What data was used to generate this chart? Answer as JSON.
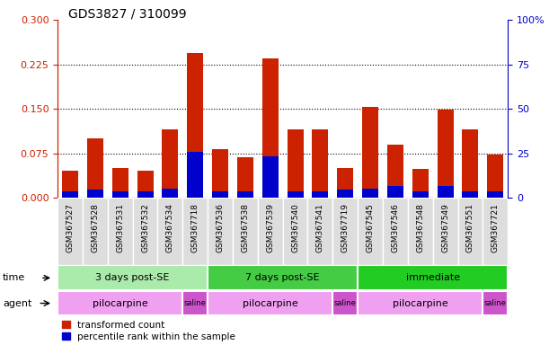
{
  "title": "GDS3827 / 310099",
  "samples": [
    "GSM367527",
    "GSM367528",
    "GSM367531",
    "GSM367532",
    "GSM367534",
    "GSM367718",
    "GSM367536",
    "GSM367538",
    "GSM367539",
    "GSM367540",
    "GSM367541",
    "GSM367719",
    "GSM367545",
    "GSM367546",
    "GSM367548",
    "GSM367549",
    "GSM367551",
    "GSM367721"
  ],
  "transformed_count": [
    0.045,
    0.1,
    0.05,
    0.045,
    0.115,
    0.245,
    0.082,
    0.068,
    0.235,
    0.115,
    0.115,
    0.05,
    0.153,
    0.09,
    0.048,
    0.148,
    0.115,
    0.073
  ],
  "percentile_rank_scaled": [
    0.01,
    0.013,
    0.01,
    0.01,
    0.015,
    0.078,
    0.01,
    0.01,
    0.07,
    0.01,
    0.01,
    0.013,
    0.015,
    0.02,
    0.01,
    0.02,
    0.01,
    0.01
  ],
  "ylim_left": [
    0,
    0.3
  ],
  "ylim_right": [
    0,
    100
  ],
  "yticks_left": [
    0,
    0.075,
    0.15,
    0.225,
    0.3
  ],
  "yticks_right": [
    0,
    25,
    50,
    75,
    100
  ],
  "bar_color_red": "#cc2200",
  "bar_color_blue": "#0000cc",
  "time_groups": [
    {
      "label": "3 days post-SE",
      "start": 0,
      "end": 5,
      "color": "#aaeaaa"
    },
    {
      "label": "7 days post-SE",
      "start": 6,
      "end": 11,
      "color": "#44cc44"
    },
    {
      "label": "immediate",
      "start": 12,
      "end": 17,
      "color": "#22cc22"
    }
  ],
  "agent_groups": [
    {
      "label": "pilocarpine",
      "start": 0,
      "end": 4,
      "color": "#f0a0f0"
    },
    {
      "label": "saline",
      "start": 5,
      "end": 5,
      "color": "#cc55cc"
    },
    {
      "label": "pilocarpine",
      "start": 6,
      "end": 10,
      "color": "#f0a0f0"
    },
    {
      "label": "saline",
      "start": 11,
      "end": 11,
      "color": "#cc55cc"
    },
    {
      "label": "pilocarpine",
      "start": 12,
      "end": 16,
      "color": "#f0a0f0"
    },
    {
      "label": "saline",
      "start": 17,
      "end": 17,
      "color": "#cc55cc"
    }
  ],
  "legend_red": "transformed count",
  "legend_blue": "percentile rank within the sample",
  "time_label": "time",
  "agent_label": "agent",
  "grid_yticks": [
    0.075,
    0.15,
    0.225
  ],
  "bar_width": 0.65,
  "blue_bar_width": 0.65,
  "xticklabel_bg": "#dddddd",
  "spine_color": "#000000"
}
